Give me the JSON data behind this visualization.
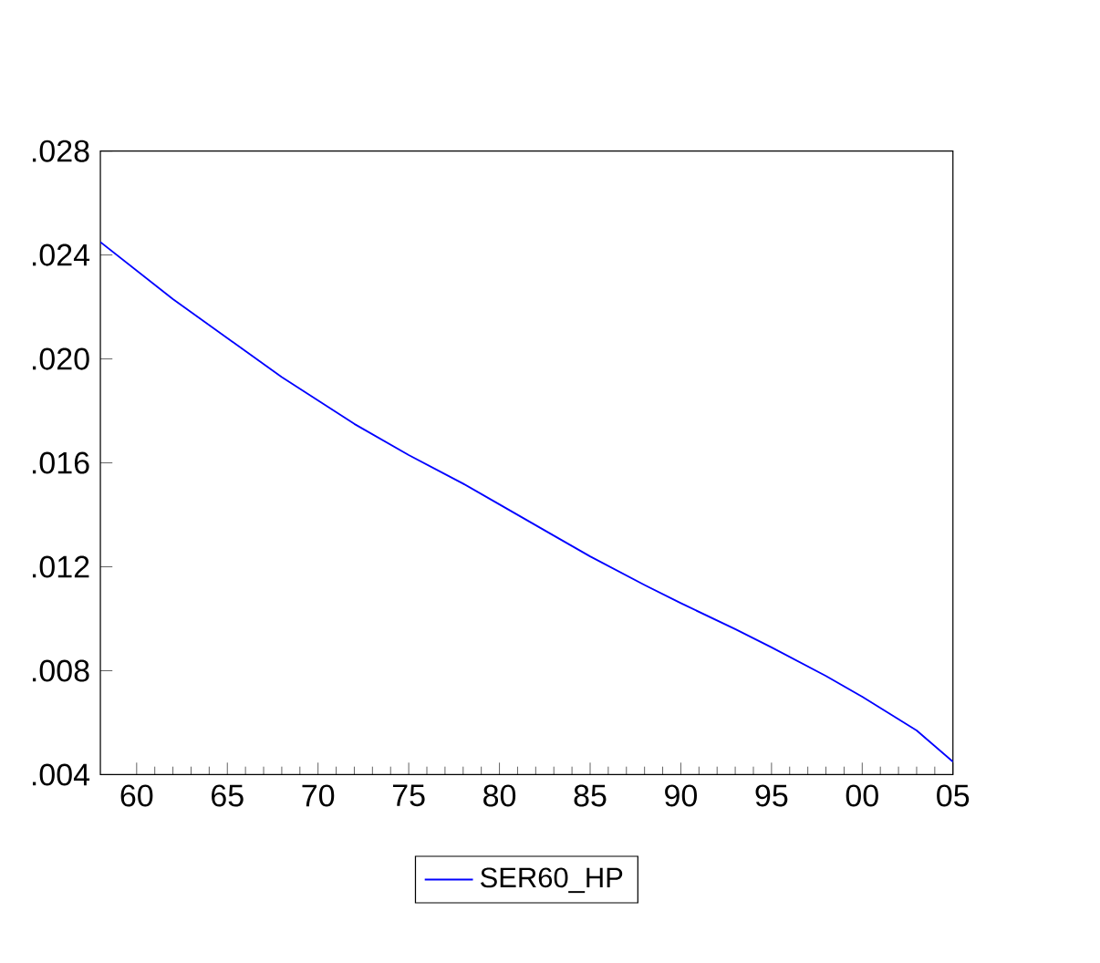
{
  "chart_data": {
    "type": "line",
    "x": [
      1958,
      1960,
      1962,
      1965,
      1968,
      1970,
      1972,
      1975,
      1978,
      1980,
      1983,
      1985,
      1988,
      1990,
      1993,
      1995,
      1998,
      2000,
      2003,
      2005
    ],
    "series": [
      {
        "name": "SER60_HP",
        "color": "#0000ff",
        "values": [
          0.0245,
          0.0234,
          0.0223,
          0.0208,
          0.0193,
          0.0184,
          0.0175,
          0.0163,
          0.0152,
          0.0144,
          0.0132,
          0.0124,
          0.0113,
          0.0106,
          0.0096,
          0.0089,
          0.0078,
          0.007,
          0.0057,
          0.0045
        ]
      }
    ],
    "xlim": [
      1958,
      2005
    ],
    "xticks": [
      {
        "value": 1960,
        "label": "60"
      },
      {
        "value": 1965,
        "label": "65"
      },
      {
        "value": 1970,
        "label": "70"
      },
      {
        "value": 1975,
        "label": "75"
      },
      {
        "value": 1980,
        "label": "80"
      },
      {
        "value": 1985,
        "label": "85"
      },
      {
        "value": 1990,
        "label": "90"
      },
      {
        "value": 1995,
        "label": "95"
      },
      {
        "value": 2000,
        "label": "00"
      },
      {
        "value": 2005,
        "label": "05"
      }
    ],
    "ylim": [
      0.004,
      0.028
    ],
    "yticks": [
      {
        "value": 0.004,
        "label": ".004"
      },
      {
        "value": 0.008,
        "label": ".008"
      },
      {
        "value": 0.012,
        "label": ".012"
      },
      {
        "value": 0.016,
        "label": ".016"
      },
      {
        "value": 0.02,
        "label": ".020"
      },
      {
        "value": 0.024,
        "label": ".024"
      },
      {
        "value": 0.028,
        "label": ".028"
      }
    ],
    "grid": false,
    "legend": "bottom",
    "line_style": "solid",
    "marker": "none"
  }
}
